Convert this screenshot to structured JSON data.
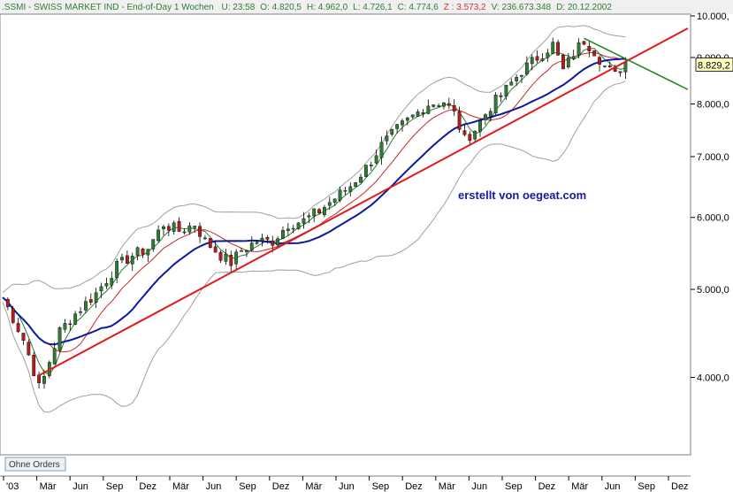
{
  "header": {
    "symbol": ".SSMI - SWISS MARKET IND - End-of-Day 1 Wochen",
    "fields": [
      {
        "text": "U: 23:58",
        "color": "#2e7d32"
      },
      {
        "text": "O: 4.820,5",
        "color": "#2e7d32"
      },
      {
        "text": "H: 4.962,0",
        "color": "#2e7d32"
      },
      {
        "text": "L: 4.726,1",
        "color": "#2e7d32"
      },
      {
        "text": "C: 4.774,6",
        "color": "#2e7d32"
      },
      {
        "text": "Z : 3.573,2",
        "color": "#d32f2f"
      },
      {
        "text": "V: 236.673.348",
        "color": "#2e7d32"
      },
      {
        "text": "D: 20.12.2002",
        "color": "#2e7d32"
      }
    ]
  },
  "watermark": "erstellt von oegeat.com",
  "button": {
    "label": "Ohne Orders"
  },
  "last_value_label": "8.829,2",
  "colors": {
    "up_candle": "#2e7d32",
    "down_candle": "#b71c1c",
    "ma_fast": "#2e7d32",
    "ma_mid": "#c62828",
    "ma_slow": "#0d1a9e",
    "bands": "#a0a0a0",
    "trend_support": "#e01b1b",
    "trend_resist": "#1b8a1b"
  },
  "chart_data": {
    "type": "candlestick",
    "scale": "log",
    "ylim": [
      3500,
      10000
    ],
    "yticks": [
      {
        "value": 4000,
        "label": "4.000,0"
      },
      {
        "value": 5000,
        "label": "5.000,0"
      },
      {
        "value": 6000,
        "label": "6.000,0"
      },
      {
        "value": 7000,
        "label": "7.000,0"
      },
      {
        "value": 8000,
        "label": "8.000,0"
      },
      {
        "value": 9000,
        "label": "9.000,0"
      },
      {
        "value": 10000,
        "label": "10.000,"
      }
    ],
    "xticks": [
      "'03",
      "Mär",
      "Jun",
      "Sep",
      "Dez",
      "Mär",
      "Jun",
      "Sep",
      "Dez",
      "Mär",
      "Jun",
      "Sep",
      "Dez",
      "Mär",
      "Jun",
      "Sep",
      "Dez",
      "Mär",
      "Jun",
      "Sep",
      "Dez"
    ],
    "anchors": [
      [
        0,
        4900
      ],
      [
        4,
        4400
      ],
      [
        7,
        3900
      ],
      [
        8,
        4000
      ],
      [
        11,
        4500
      ],
      [
        14,
        4700
      ],
      [
        18,
        4950
      ],
      [
        22,
        5300
      ],
      [
        25,
        5450
      ],
      [
        28,
        5550
      ],
      [
        31,
        5900
      ],
      [
        34,
        5800
      ],
      [
        37,
        5900
      ],
      [
        39,
        5650
      ],
      [
        42,
        5450
      ],
      [
        44,
        5350
      ],
      [
        46,
        5520
      ],
      [
        49,
        5650
      ],
      [
        52,
        5650
      ],
      [
        55,
        5900
      ],
      [
        58,
        5950
      ],
      [
        61,
        6100
      ],
      [
        64,
        6300
      ],
      [
        67,
        6500
      ],
      [
        70,
        6800
      ],
      [
        73,
        7200
      ],
      [
        76,
        7500
      ],
      [
        79,
        7750
      ],
      [
        82,
        8000
      ],
      [
        85,
        8050
      ],
      [
        87,
        7800
      ],
      [
        89,
        7300
      ],
      [
        91,
        7500
      ],
      [
        94,
        7950
      ],
      [
        97,
        8300
      ],
      [
        100,
        8700
      ],
      [
        103,
        9000
      ],
      [
        106,
        9300
      ],
      [
        108,
        8700
      ],
      [
        110,
        9100
      ],
      [
        112,
        9400
      ],
      [
        114,
        9150
      ],
      [
        116,
        8800
      ],
      [
        118,
        8600
      ],
      [
        120,
        8900
      ]
    ],
    "support_line": {
      "start": [
        7,
        4020
      ],
      "end": [
        132,
        9690
      ]
    },
    "resist_line": {
      "start": [
        112,
        9450
      ],
      "end": [
        132,
        8300
      ]
    },
    "series": [
      {
        "name": "MA short",
        "kind": "ma",
        "period": 4
      },
      {
        "name": "MA mid",
        "kind": "ma",
        "period": 10
      },
      {
        "name": "MA long",
        "kind": "ma",
        "period": 20
      },
      {
        "name": "Bollinger",
        "kind": "bands",
        "period": 20,
        "width": 2
      }
    ],
    "last_value": 8829.2
  }
}
